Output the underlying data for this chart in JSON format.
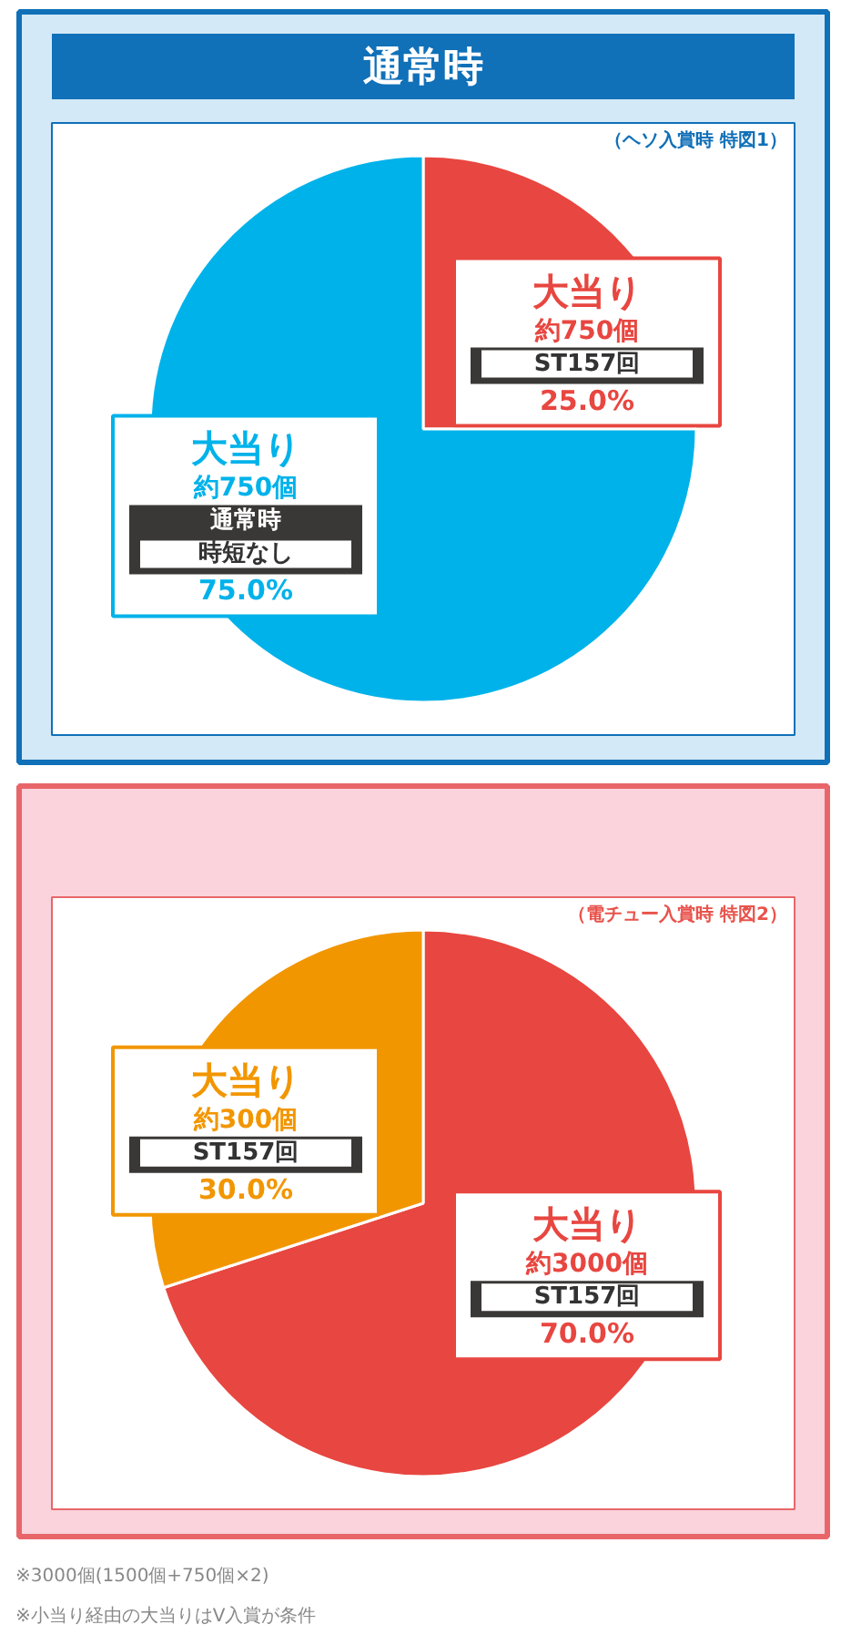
{
  "chart_data": [
    {
      "type": "pie",
      "title": "通常時",
      "subtitle": "（ヘソ入賞時 特図1）",
      "categories": [
        "大当り",
        "大当り"
      ],
      "values": [
        25,
        75
      ],
      "colors": [
        "#e84640",
        "#00b2ea"
      ],
      "value_labels": [
        "25.0%",
        "75.0%"
      ],
      "annotations": [
        "約750個",
        "ST157回",
        "約750個",
        "通常時",
        "時短なし"
      ]
    },
    {
      "type": "pie",
      "subtitle": "（電チュー入賞時 特図2）",
      "categories": [
        "大当り",
        "大当り"
      ],
      "values": [
        70,
        30
      ],
      "colors": [
        "#e84640",
        "#f29600"
      ],
      "value_labels": [
        "70.0%",
        "30.0%"
      ],
      "annotations": [
        "約3000個",
        "ST157回",
        "約300個",
        "ST157回",
        "※3000個(1500個+750個×2)",
        "※小当り経由の大当りはV入賞が条件"
      ]
    }
  ]
}
